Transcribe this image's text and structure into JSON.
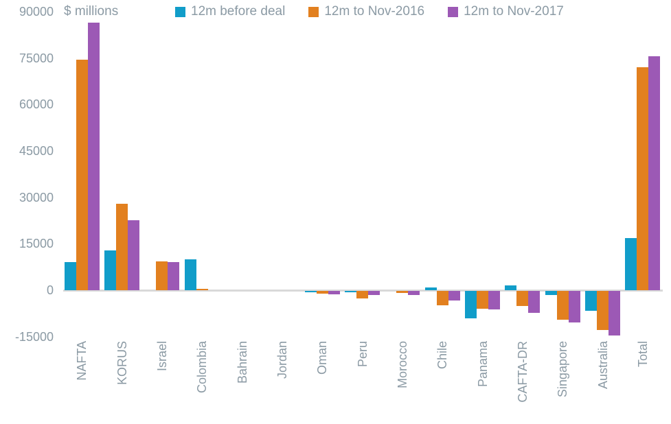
{
  "colors": {
    "text": "#8B9AA4",
    "baseline": "#D9D9D9",
    "background": "#FFFFFF",
    "teal": "#119DC9",
    "orange": "#E2801F",
    "purple": "#9C59B5"
  },
  "legend": [
    {
      "label": "12m before deal",
      "color": "#119DC9"
    },
    {
      "label": "12m to Nov-2016",
      "color": "#E2801F"
    },
    {
      "label": "12m to Nov-2017",
      "color": "#9C59B5"
    }
  ],
  "chart_data": {
    "type": "bar",
    "title": "",
    "ylabel": "$ millions",
    "xlabel": "",
    "ylim": [
      -15000,
      90000
    ],
    "yticks": [
      90000,
      75000,
      60000,
      45000,
      30000,
      15000,
      0,
      -15000
    ],
    "grid": false,
    "legend_position": "top",
    "categories": [
      "NAFTA",
      "KORUS",
      "Israel",
      "Colombia",
      "Bahrain",
      "Jordan",
      "Oman",
      "Peru",
      "Morocco",
      "Chile",
      "Panama",
      "CAFTA-DR",
      "Singapore",
      "Australia",
      "Total"
    ],
    "series": [
      {
        "name": "12m before deal",
        "color": "#119DC9",
        "values": [
          9000,
          12800,
          0,
          9900,
          0,
          0,
          -500,
          -400,
          0,
          900,
          -8900,
          1500,
          -1300,
          -6500,
          16900
        ]
      },
      {
        "name": "12m to Nov-2016",
        "color": "#E2801F",
        "values": [
          74500,
          28000,
          9200,
          500,
          0,
          0,
          -900,
          -2400,
          -700,
          -4600,
          -5800,
          -4900,
          -9400,
          -12600,
          72000
        ]
      },
      {
        "name": "12m to Nov-2017",
        "color": "#9C59B5",
        "values": [
          86500,
          22500,
          9100,
          0,
          0,
          0,
          -1200,
          -1400,
          -1300,
          -3100,
          -5900,
          -7200,
          -10300,
          -14300,
          75500
        ]
      }
    ]
  }
}
